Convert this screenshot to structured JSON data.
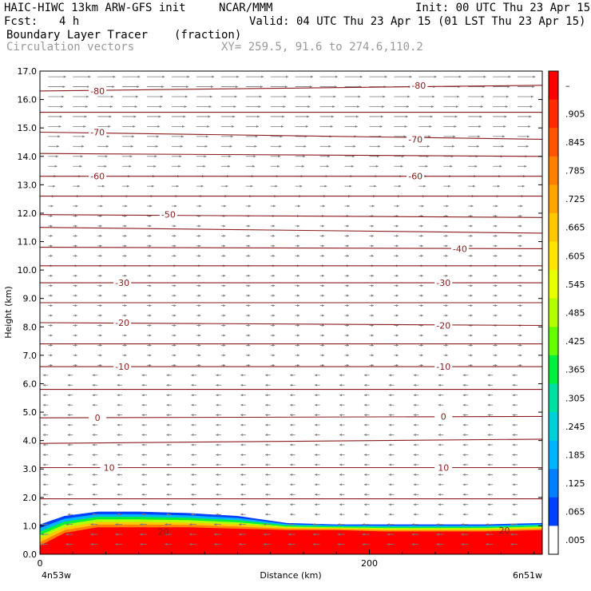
{
  "header": {
    "model": "HAIC-HIWC 13km ARW-GFS init",
    "org": "NCAR/MMM",
    "init": "Init: 00 UTC Thu 23 Apr 15",
    "fcst_label": "Fcst:",
    "fcst_value": "4 h",
    "valid": "Valid: 04 UTC Thu 23 Apr 15 (01 LST Thu 23 Apr 15)",
    "field": "Boundary Layer Tracer",
    "field_units": "(fraction)",
    "overlay": "Circulation vectors",
    "xy": "XY= 259.5, 91.6 to 274.6,110.2"
  },
  "chart_data": {
    "type": "heatmap",
    "title": "Boundary Layer Tracer",
    "units": "(fraction)",
    "xlabel": "Distance (km)",
    "ylabel": "Height (km)",
    "xlim": [
      0,
      305
    ],
    "ylim": [
      0,
      17
    ],
    "x_ticks": [
      0,
      200
    ],
    "x_tick_labels": [
      "0",
      "200"
    ],
    "x_end_labels": [
      "4n53w",
      "6n51w"
    ],
    "y_ticks": [
      0,
      1,
      2,
      3,
      4,
      5,
      6,
      7,
      8,
      9,
      10,
      11,
      12,
      13,
      14,
      15,
      16,
      17
    ],
    "y_tick_labels": [
      "0.0",
      "1.0",
      "2.0",
      "3.0",
      "4.0",
      "5.0",
      "6.0",
      "7.0",
      "8.0",
      "9.0",
      "10.0",
      "11.0",
      "12.0",
      "13.0",
      "14.0",
      "15.0",
      "16.0",
      "17.0"
    ],
    "colorbar": {
      "labels": [
        "–",
        ".905",
        ".845",
        ".785",
        ".725",
        ".665",
        ".605",
        ".545",
        ".485",
        ".425",
        ".365",
        ".305",
        ".245",
        ".185",
        ".125",
        ".065",
        ".005"
      ],
      "colors": [
        "#ff0000",
        "#ff2a00",
        "#ff5500",
        "#ff7f00",
        "#ffa500",
        "#ffc800",
        "#ffe600",
        "#e8ff00",
        "#b4ff00",
        "#64ff00",
        "#00f040",
        "#00e0a0",
        "#00d0d8",
        "#00b4ff",
        "#0080ff",
        "#0040ff",
        "#ffffff"
      ]
    },
    "tracer_profile": {
      "x": [
        0,
        15,
        35,
        60,
        90,
        120,
        150,
        180,
        210,
        240,
        270,
        305
      ],
      "top": [
        1.05,
        1.35,
        1.5,
        1.5,
        1.45,
        1.35,
        1.1,
        1.05,
        1.05,
        1.05,
        1.05,
        1.1
      ],
      "core_top": [
        0.3,
        0.75,
        0.95,
        0.95,
        0.95,
        0.9,
        0.85,
        0.85,
        0.8,
        0.8,
        0.8,
        0.85
      ]
    },
    "contour_color": "#8b1a1a",
    "isotherms": [
      {
        "y0": 16.3,
        "y1": 16.5,
        "labels": [
          {
            "text": "-80",
            "x": 35,
            "y": 16.3
          },
          {
            "text": "-80",
            "x": 230,
            "y": 16.5
          }
        ]
      },
      {
        "y0": 15.55,
        "y1": 15.55,
        "labels": []
      },
      {
        "y0": 14.85,
        "y1": 14.6,
        "labels": [
          {
            "text": "-70",
            "x": 35,
            "y": 14.85
          },
          {
            "text": "-70",
            "x": 228,
            "y": 14.6
          }
        ]
      },
      {
        "y0": 14.1,
        "y1": 14.0,
        "labels": []
      },
      {
        "y0": 13.3,
        "y1": 13.3,
        "labels": [
          {
            "text": "-60",
            "x": 35,
            "y": 13.3
          },
          {
            "text": "-60",
            "x": 228,
            "y": 13.3
          }
        ]
      },
      {
        "y0": 12.6,
        "y1": 12.6,
        "labels": []
      },
      {
        "y0": 11.95,
        "y1": 11.85,
        "labels": [
          {
            "text": "-50",
            "x": 78,
            "y": 11.95
          }
        ]
      },
      {
        "y0": 11.5,
        "y1": 11.3,
        "labels": []
      },
      {
        "y0": 10.8,
        "y1": 10.75,
        "labels": [
          {
            "text": "-40",
            "x": 255,
            "y": 10.75
          }
        ]
      },
      {
        "y0": 10.15,
        "y1": 10.15,
        "labels": []
      },
      {
        "y0": 9.55,
        "y1": 9.55,
        "labels": [
          {
            "text": "-30",
            "x": 50,
            "y": 9.55
          },
          {
            "text": "-30",
            "x": 245,
            "y": 9.55
          }
        ]
      },
      {
        "y0": 8.85,
        "y1": 8.85,
        "labels": []
      },
      {
        "y0": 8.15,
        "y1": 8.05,
        "labels": [
          {
            "text": "-20",
            "x": 50,
            "y": 8.15
          },
          {
            "text": "-20",
            "x": 245,
            "y": 8.05
          }
        ]
      },
      {
        "y0": 7.4,
        "y1": 7.4,
        "labels": []
      },
      {
        "y0": 6.6,
        "y1": 6.6,
        "labels": [
          {
            "text": "-10",
            "x": 50,
            "y": 6.6
          },
          {
            "text": "-10",
            "x": 245,
            "y": 6.6
          }
        ]
      },
      {
        "y0": 5.8,
        "y1": 5.8,
        "labels": []
      },
      {
        "y0": 4.8,
        "y1": 4.85,
        "labels": [
          {
            "text": "0",
            "x": 35,
            "y": 4.8
          },
          {
            "text": "0",
            "x": 245,
            "y": 4.85
          }
        ]
      },
      {
        "y0": 3.9,
        "y1": 4.05,
        "labels": []
      },
      {
        "y0": 3.05,
        "y1": 3.05,
        "labels": [
          {
            "text": "10",
            "x": 42,
            "y": 3.05
          },
          {
            "text": "10",
            "x": 245,
            "y": 3.05
          }
        ]
      },
      {
        "y0": 1.95,
        "y1": 1.95,
        "labels": []
      }
    ],
    "low_labels": [
      {
        "text": "20",
        "x": 75,
        "y": 0.8
      },
      {
        "text": "20",
        "x": 282,
        "y": 0.85
      }
    ]
  }
}
